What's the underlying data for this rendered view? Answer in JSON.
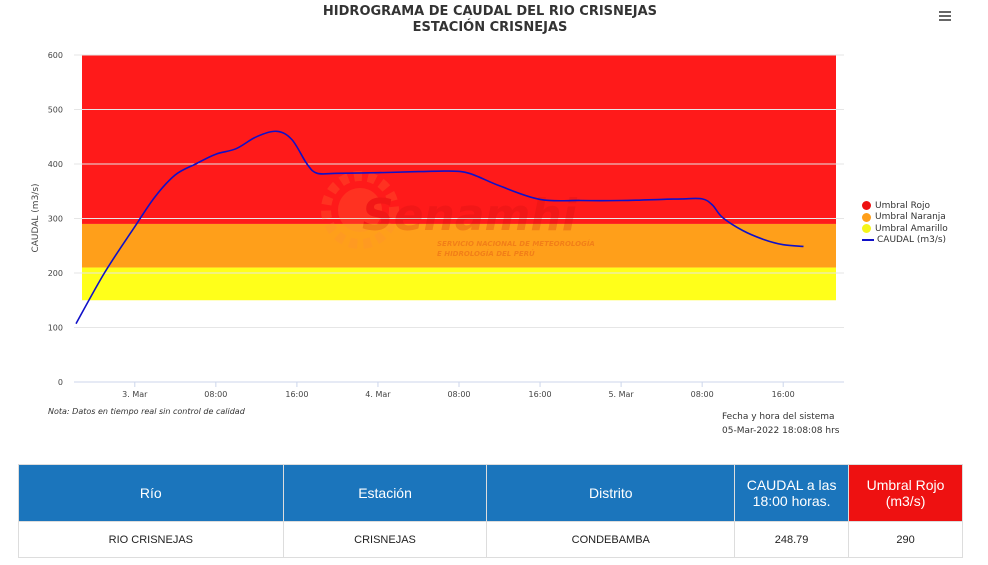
{
  "chart_data": {
    "type": "line",
    "title_line1": "HIDROGRAMA DE CAUDAL DEL RIO CRISNEJAS",
    "title_line2": "ESTACIÓN CRISNEJAS",
    "ylabel": "CAUDAL (m3/s)",
    "xlabel": "",
    "ylim": [
      0,
      600
    ],
    "y_ticks": [
      "0",
      "100",
      "200",
      "300",
      "400",
      "500",
      "600"
    ],
    "x_ticks": [
      "3. Mar",
      "08:00",
      "16:00",
      "4. Mar",
      "08:00",
      "16:00",
      "5. Mar",
      "08:00",
      "16:00"
    ],
    "x_tick_hours": [
      0,
      8,
      16,
      24,
      32,
      40,
      48,
      56,
      64
    ],
    "xlim_hours": [
      -6,
      70
    ],
    "threshold_bands": [
      {
        "name": "Umbral Rojo",
        "from": 290,
        "to": 600,
        "color": "#ff1a1a"
      },
      {
        "name": "Umbral Naranja",
        "from": 210,
        "to": 290,
        "color": "#ff9f1a"
      },
      {
        "name": "Umbral Amarillo",
        "from": 150,
        "to": 210,
        "color": "#ffff1a"
      }
    ],
    "series": [
      {
        "name": "CAUDAL (m3/s)",
        "color": "#1010c8",
        "x_hours": [
          -5.8,
          -3,
          0,
          2,
          4,
          6,
          8,
          10,
          12,
          14,
          15.5,
          17,
          18,
          20,
          24,
          28,
          31,
          33,
          36,
          40,
          44,
          48,
          52,
          54,
          56,
          57,
          58,
          60,
          62,
          64,
          66
        ],
        "y": [
          107,
          200,
          285,
          340,
          380,
          400,
          418,
          428,
          450,
          460,
          445,
          400,
          383,
          383,
          384,
          386,
          387,
          383,
          360,
          335,
          333,
          333,
          335,
          336,
          336,
          325,
          302,
          278,
          262,
          252,
          248.79
        ]
      }
    ],
    "legend_position": "right",
    "grid": true
  },
  "watermark": {
    "brand": "Senamhi",
    "subtitle_line1": "SERVICIO NACIONAL DE METEOROLOGÍA",
    "subtitle_line2": "E HIDROLOGÍA DEL PERÚ"
  },
  "note": "Nota: Datos en tiempo real sin control de calidad",
  "system_time_label": "Fecha y hora del sistema",
  "system_time_value": "05-Mar-2022 18:08:08 hrs",
  "table": {
    "headers": [
      "Río",
      "Estación",
      "Distrito",
      "CAUDAL a las 18:00 horas.",
      "Umbral Rojo (m3/s)"
    ],
    "row": [
      "RIO CRISNEJAS",
      "CRISNEJAS",
      "CONDEBAMBA",
      "248.79",
      "290"
    ]
  }
}
